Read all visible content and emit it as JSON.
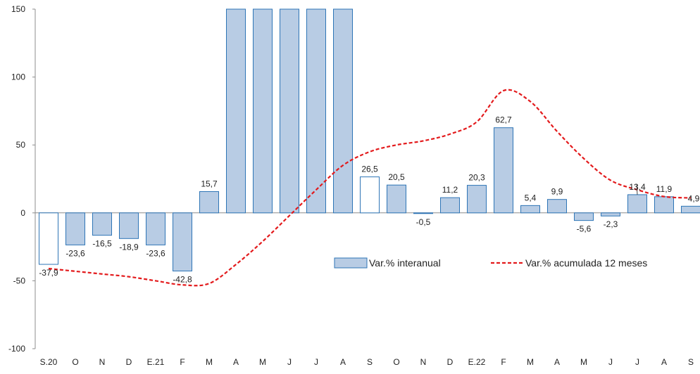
{
  "chart_data": {
    "type": "bar",
    "categories": [
      "S.20",
      "O",
      "N",
      "D",
      "E.21",
      "F",
      "M",
      "A",
      "M",
      "J",
      "J",
      "A",
      "S",
      "O",
      "N",
      "D",
      "E.22",
      "F",
      "M",
      "A",
      "M",
      "J",
      "J",
      "A",
      "S"
    ],
    "ylim": [
      -100,
      150
    ],
    "yticks": [
      "150",
      "100",
      "50",
      "0",
      "-50",
      "-100"
    ],
    "grid": false,
    "legend_placement": "center-right",
    "series": [
      {
        "name": "Var.% interanual",
        "type": "bar",
        "values": [
          -37.9,
          -23.6,
          -16.5,
          -18.9,
          -23.6,
          -42.8,
          15.7,
          150,
          150,
          150,
          150,
          150,
          26.5,
          20.5,
          -0.5,
          11.2,
          20.3,
          62.7,
          5.4,
          9.9,
          -5.6,
          -2.3,
          13.4,
          11.9,
          4.9
        ],
        "labels": [
          "-37,9",
          "-23,6",
          "-16,5",
          "-18,9",
          "-23,6",
          "-42,8",
          "15,7",
          "",
          "",
          "",
          "",
          "",
          "26,5",
          "20,5",
          "-0,5",
          "11,2",
          "20,3",
          "62,7",
          "5,4",
          "9,9",
          "-5,6",
          "-2,3",
          "13,4",
          "11,9",
          "4,9"
        ],
        "hollow": [
          true,
          false,
          false,
          false,
          false,
          false,
          false,
          false,
          false,
          false,
          false,
          false,
          true,
          false,
          false,
          false,
          false,
          false,
          false,
          false,
          false,
          false,
          false,
          false,
          false
        ],
        "fill_color": "#b8cce4",
        "stroke_color": "#2e75b6"
      },
      {
        "name": "Var.% acumulada 12 meses",
        "type": "line",
        "values": [
          -41,
          -43,
          -45,
          -47,
          -50,
          -53,
          -52,
          -38,
          -21,
          -2,
          17,
          35,
          45,
          50,
          53,
          58,
          67,
          90,
          82,
          60,
          40,
          24,
          17,
          12,
          11
        ],
        "color": "#e31a1c",
        "dash": true
      }
    ]
  }
}
